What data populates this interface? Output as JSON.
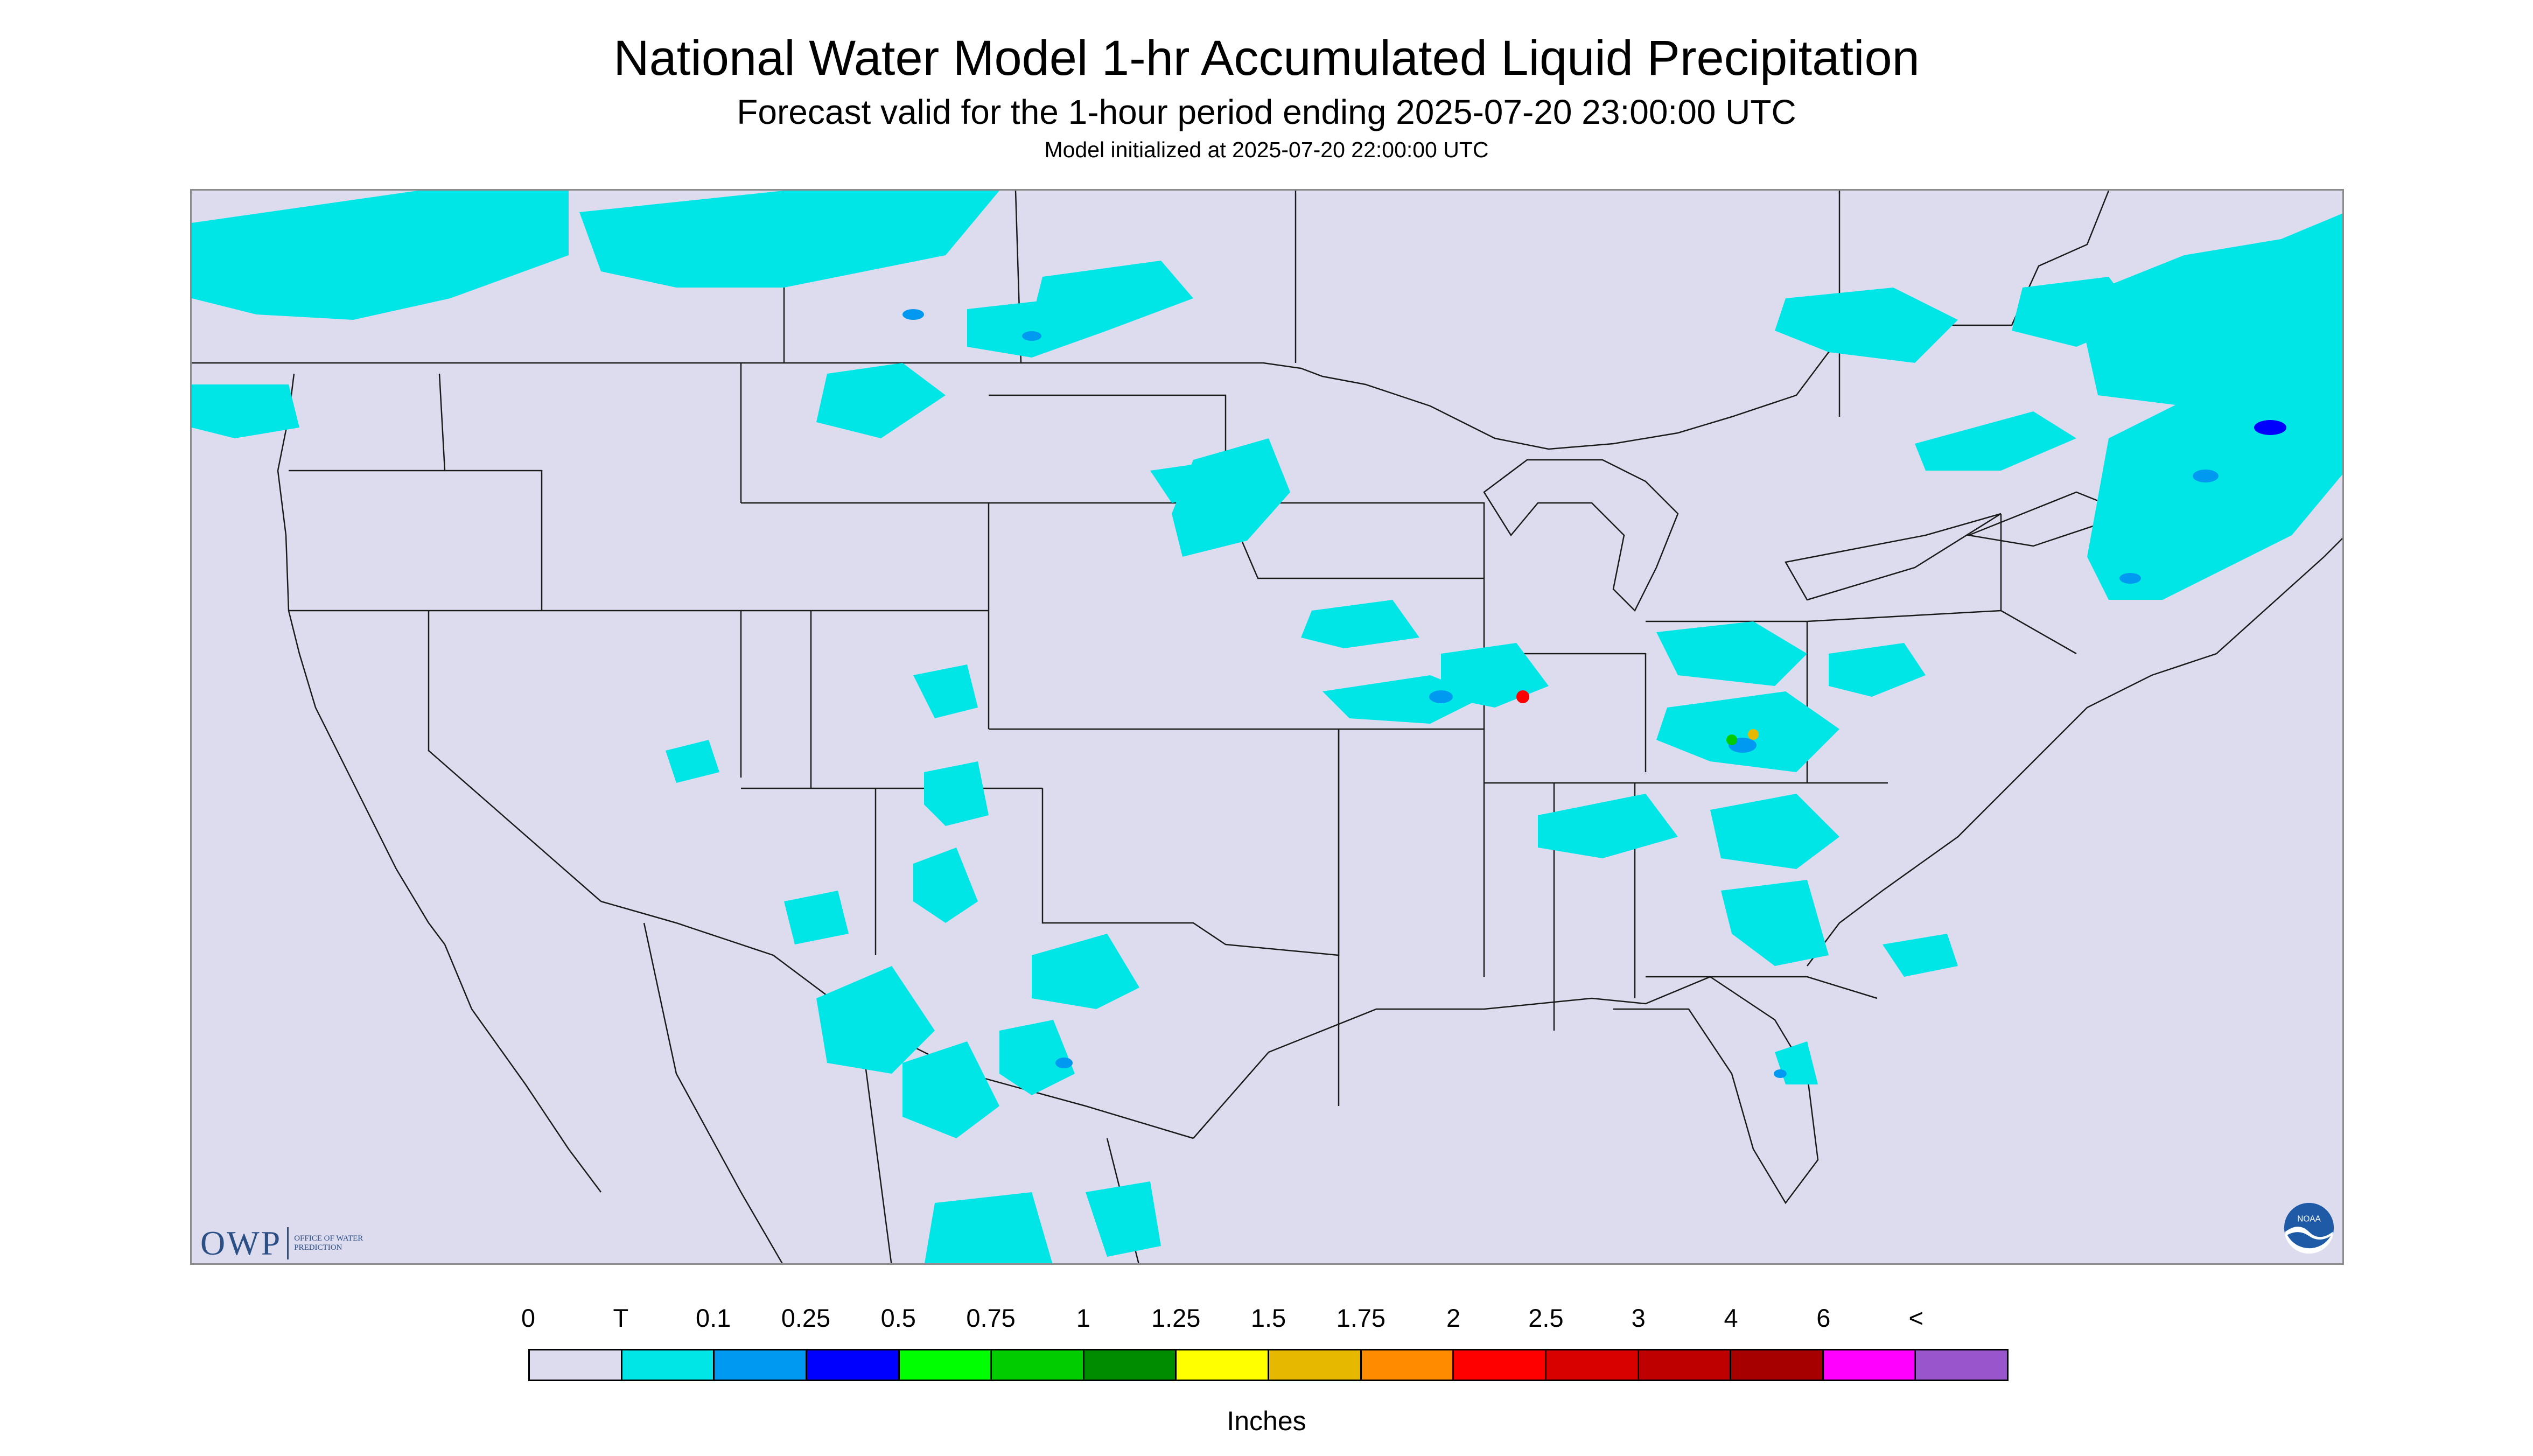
{
  "header": {
    "title": "National Water Model 1-hr Accumulated Liquid Precipitation",
    "subtitle": "Forecast valid for the 1-hour period ending 2025-07-20 23:00:00 UTC",
    "init": "Model initialized at 2025-07-20 22:00:00 UTC"
  },
  "map": {
    "background_color": "#dcdcee",
    "land_color": "#dcdcee",
    "border_color": "#1a1a1a",
    "description_colors": {
      "trace": "#00e6e6",
      "light": "#0099f2",
      "moderate": "#0000ff",
      "heavy": "#ff0000"
    }
  },
  "logos": {
    "owp_letters": "OWP",
    "owp_text": "OFFICE OF WATER PREDICTION",
    "noaa_text": "NOAA"
  },
  "legend": {
    "ticks": [
      "0",
      "T",
      "0.1",
      "0.25",
      "0.5",
      "0.75",
      "1",
      "1.25",
      "1.5",
      "1.75",
      "2",
      "2.5",
      "3",
      "4",
      "6",
      "<"
    ],
    "colors": [
      "#dcdcee",
      "#00e6e6",
      "#0099f2",
      "#0000ff",
      "#00ff00",
      "#00cc00",
      "#008c00",
      "#ffff00",
      "#e6b800",
      "#ff8c00",
      "#ff0000",
      "#d90000",
      "#bf0000",
      "#a60000",
      "#ff00ff",
      "#9955cc"
    ],
    "units": "Inches"
  }
}
